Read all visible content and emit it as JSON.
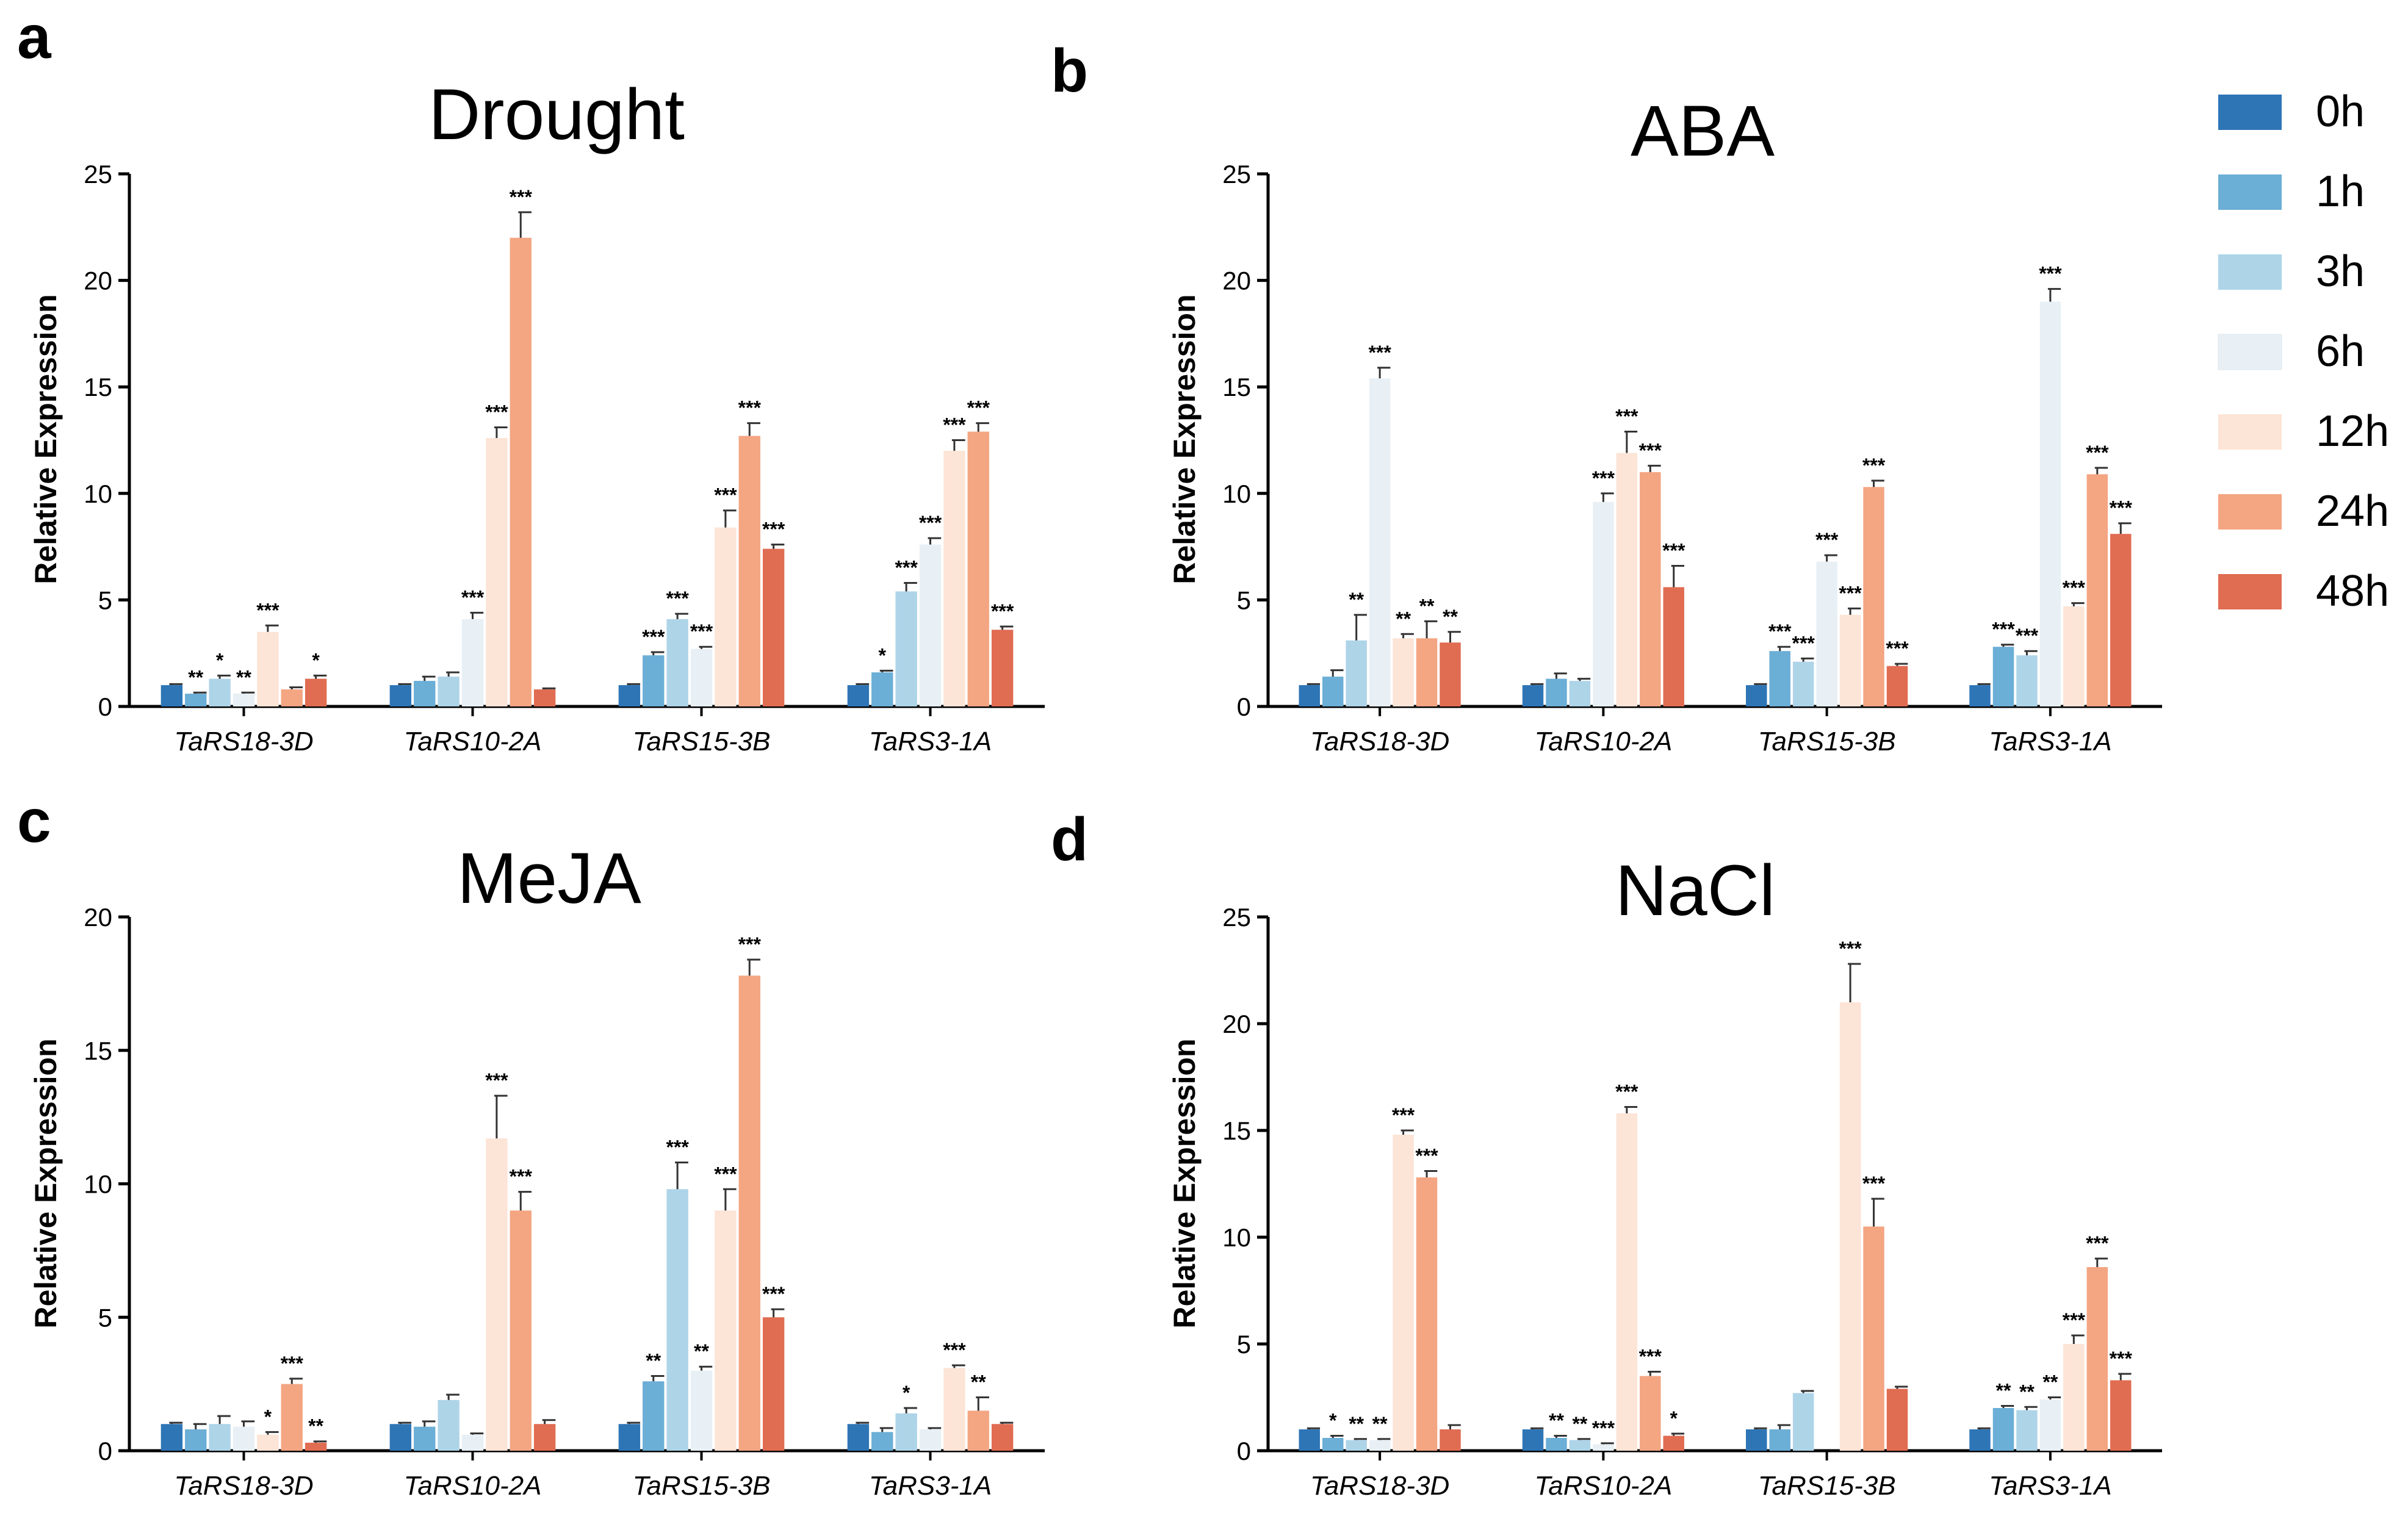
{
  "legend": [
    {
      "label": "0h",
      "color": "#2e75b6"
    },
    {
      "label": "1h",
      "color": "#6baed6"
    },
    {
      "label": "3h",
      "color": "#aed4e8"
    },
    {
      "label": "6h",
      "color": "#e8f0f5"
    },
    {
      "label": "12h",
      "color": "#fce4d6"
    },
    {
      "label": "24h",
      "color": "#f4a582"
    },
    {
      "label": "48h",
      "color": "#e06c52"
    }
  ],
  "chart_data": [
    {
      "type": "bar",
      "panel": "a",
      "title": "Drought",
      "ylabel": "Relative Expression",
      "ylim": [
        0,
        25
      ],
      "yticks": [
        "0",
        "5",
        "10",
        "15",
        "20",
        "25"
      ],
      "categories": [
        "TaRS18-3D",
        "TaRS10-2A",
        "TaRS15-3B",
        "TaRS3-1A"
      ],
      "series": [
        {
          "name": "0h",
          "values": [
            1.0,
            1.0,
            1.0,
            1.0
          ],
          "errors": [
            0.05,
            0.05,
            0.05,
            0.05
          ],
          "sig": [
            "",
            "",
            "",
            ""
          ]
        },
        {
          "name": "1h",
          "values": [
            0.6,
            1.2,
            2.4,
            1.6
          ],
          "errors": [
            0.05,
            0.2,
            0.15,
            0.08
          ],
          "sig": [
            "**",
            "",
            "***",
            "*"
          ]
        },
        {
          "name": "3h",
          "values": [
            1.3,
            1.4,
            4.1,
            5.4
          ],
          "errors": [
            0.15,
            0.2,
            0.25,
            0.4
          ],
          "sig": [
            "*",
            "",
            "***",
            "***"
          ]
        },
        {
          "name": "6h",
          "values": [
            0.6,
            4.1,
            2.7,
            7.6
          ],
          "errors": [
            0.05,
            0.3,
            0.1,
            0.3
          ],
          "sig": [
            "**",
            "***",
            "***",
            "***"
          ]
        },
        {
          "name": "12h",
          "values": [
            3.5,
            12.6,
            8.4,
            12.0
          ],
          "errors": [
            0.3,
            0.5,
            0.8,
            0.5
          ],
          "sig": [
            "***",
            "***",
            "***",
            "***"
          ]
        },
        {
          "name": "24h",
          "values": [
            0.8,
            22.0,
            12.7,
            12.9
          ],
          "errors": [
            0.1,
            1.2,
            0.6,
            0.4
          ],
          "sig": [
            "",
            "***",
            "***",
            "***"
          ]
        },
        {
          "name": "48h",
          "values": [
            1.3,
            0.8,
            7.4,
            3.6
          ],
          "errors": [
            0.15,
            0.05,
            0.2,
            0.15
          ],
          "sig": [
            "*",
            "",
            "***",
            "***"
          ]
        }
      ]
    },
    {
      "type": "bar",
      "panel": "b",
      "title": "ABA",
      "ylabel": "Relative Expression",
      "ylim": [
        0,
        25
      ],
      "yticks": [
        "0",
        "5",
        "10",
        "15",
        "20",
        "25"
      ],
      "categories": [
        "TaRS18-3D",
        "TaRS10-2A",
        "TaRS15-3B",
        "TaRS3-1A"
      ],
      "series": [
        {
          "name": "0h",
          "values": [
            1.0,
            1.0,
            1.0,
            1.0
          ],
          "errors": [
            0.05,
            0.05,
            0.05,
            0.05
          ],
          "sig": [
            "",
            "",
            "",
            ""
          ]
        },
        {
          "name": "1h",
          "values": [
            1.4,
            1.3,
            2.6,
            2.8
          ],
          "errors": [
            0.3,
            0.25,
            0.2,
            0.1
          ],
          "sig": [
            "",
            "",
            "***",
            "***"
          ]
        },
        {
          "name": "3h",
          "values": [
            3.1,
            1.2,
            2.1,
            2.4
          ],
          "errors": [
            1.2,
            0.1,
            0.15,
            0.2
          ],
          "sig": [
            "**",
            "",
            "***",
            "***"
          ]
        },
        {
          "name": "6h",
          "values": [
            15.4,
            9.6,
            6.8,
            19.0
          ],
          "errors": [
            0.5,
            0.4,
            0.3,
            0.6
          ],
          "sig": [
            "***",
            "***",
            "***",
            "***"
          ]
        },
        {
          "name": "12h",
          "values": [
            3.2,
            11.9,
            4.3,
            4.7
          ],
          "errors": [
            0.2,
            1.0,
            0.3,
            0.15
          ],
          "sig": [
            "**",
            "***",
            "***",
            "***"
          ]
        },
        {
          "name": "24h",
          "values": [
            3.2,
            11.0,
            10.3,
            10.9
          ],
          "errors": [
            0.8,
            0.3,
            0.3,
            0.3
          ],
          "sig": [
            "**",
            "***",
            "***",
            "***"
          ]
        },
        {
          "name": "48h",
          "values": [
            3.0,
            5.6,
            1.9,
            8.1
          ],
          "errors": [
            0.5,
            1.0,
            0.1,
            0.5
          ],
          "sig": [
            "**",
            "***",
            "***",
            "***"
          ]
        }
      ]
    },
    {
      "type": "bar",
      "panel": "c",
      "title": "MeJA",
      "ylabel": "Relative Expression",
      "ylim": [
        0,
        20
      ],
      "yticks": [
        "0",
        "5",
        "10",
        "15",
        "20"
      ],
      "categories": [
        "TaRS18-3D",
        "TaRS10-2A",
        "TaRS15-3B",
        "TaRS3-1A"
      ],
      "series": [
        {
          "name": "0h",
          "values": [
            1.0,
            1.0,
            1.0,
            1.0
          ],
          "errors": [
            0.05,
            0.05,
            0.05,
            0.05
          ],
          "sig": [
            "",
            "",
            "",
            ""
          ]
        },
        {
          "name": "1h",
          "values": [
            0.8,
            0.9,
            2.6,
            0.7
          ],
          "errors": [
            0.2,
            0.2,
            0.2,
            0.15
          ],
          "sig": [
            "",
            "",
            "**",
            ""
          ]
        },
        {
          "name": "3h",
          "values": [
            1.0,
            1.9,
            9.8,
            1.4
          ],
          "errors": [
            0.3,
            0.2,
            1.0,
            0.2
          ],
          "sig": [
            "",
            "",
            "***",
            "*"
          ]
        },
        {
          "name": "6h",
          "values": [
            0.9,
            0.6,
            3.0,
            0.8
          ],
          "errors": [
            0.2,
            0.05,
            0.15,
            0.05
          ],
          "sig": [
            "",
            "",
            "**",
            ""
          ]
        },
        {
          "name": "12h",
          "values": [
            0.6,
            11.7,
            9.0,
            3.1
          ],
          "errors": [
            0.1,
            1.6,
            0.8,
            0.1
          ],
          "sig": [
            "*",
            "***",
            "***",
            "***"
          ]
        },
        {
          "name": "24h",
          "values": [
            2.5,
            9.0,
            17.8,
            1.5
          ],
          "errors": [
            0.2,
            0.7,
            0.6,
            0.5
          ],
          "sig": [
            "***",
            "***",
            "***",
            "**"
          ]
        },
        {
          "name": "48h",
          "values": [
            0.3,
            1.0,
            5.0,
            1.0
          ],
          "errors": [
            0.05,
            0.15,
            0.3,
            0.05
          ],
          "sig": [
            "**",
            "",
            "***",
            ""
          ]
        }
      ]
    },
    {
      "type": "bar",
      "panel": "d",
      "title": "NaCl",
      "ylabel": "Relative Expression",
      "ylim": [
        0,
        25
      ],
      "yticks": [
        "0",
        "5",
        "10",
        "15",
        "20",
        "25"
      ],
      "categories": [
        "TaRS18-3D",
        "TaRS10-2A",
        "TaRS15-3B",
        "TaRS3-1A"
      ],
      "series": [
        {
          "name": "0h",
          "values": [
            1.0,
            1.0,
            1.0,
            1.0
          ],
          "errors": [
            0.05,
            0.05,
            0.05,
            0.05
          ],
          "sig": [
            "",
            "",
            "",
            ""
          ]
        },
        {
          "name": "1h",
          "values": [
            0.6,
            0.6,
            1.0,
            2.0
          ],
          "errors": [
            0.1,
            0.1,
            0.2,
            0.1
          ],
          "sig": [
            "*",
            "**",
            "",
            "**"
          ]
        },
        {
          "name": "3h",
          "values": [
            0.5,
            0.5,
            2.7,
            1.9
          ],
          "errors": [
            0.05,
            0.05,
            0.1,
            0.15
          ],
          "sig": [
            "**",
            "**",
            "",
            "**"
          ]
        },
        {
          "name": "6h",
          "values": [
            0.5,
            0.3,
            0.0,
            2.4
          ],
          "errors": [
            0.05,
            0.05,
            0.0,
            0.1
          ],
          "sig": [
            "**",
            "***",
            "",
            "**"
          ]
        },
        {
          "name": "12h",
          "values": [
            14.8,
            15.8,
            21.0,
            5.0
          ],
          "errors": [
            0.2,
            0.3,
            1.8,
            0.4
          ],
          "sig": [
            "***",
            "***",
            "***",
            "***"
          ]
        },
        {
          "name": "24h",
          "values": [
            12.8,
            3.5,
            10.5,
            8.6
          ],
          "errors": [
            0.3,
            0.2,
            1.3,
            0.4
          ],
          "sig": [
            "***",
            "***",
            "***",
            "***"
          ]
        },
        {
          "name": "48h",
          "values": [
            1.0,
            0.7,
            2.9,
            3.3
          ],
          "errors": [
            0.2,
            0.1,
            0.1,
            0.3
          ],
          "sig": [
            "",
            "*",
            "",
            "***"
          ]
        }
      ]
    }
  ]
}
